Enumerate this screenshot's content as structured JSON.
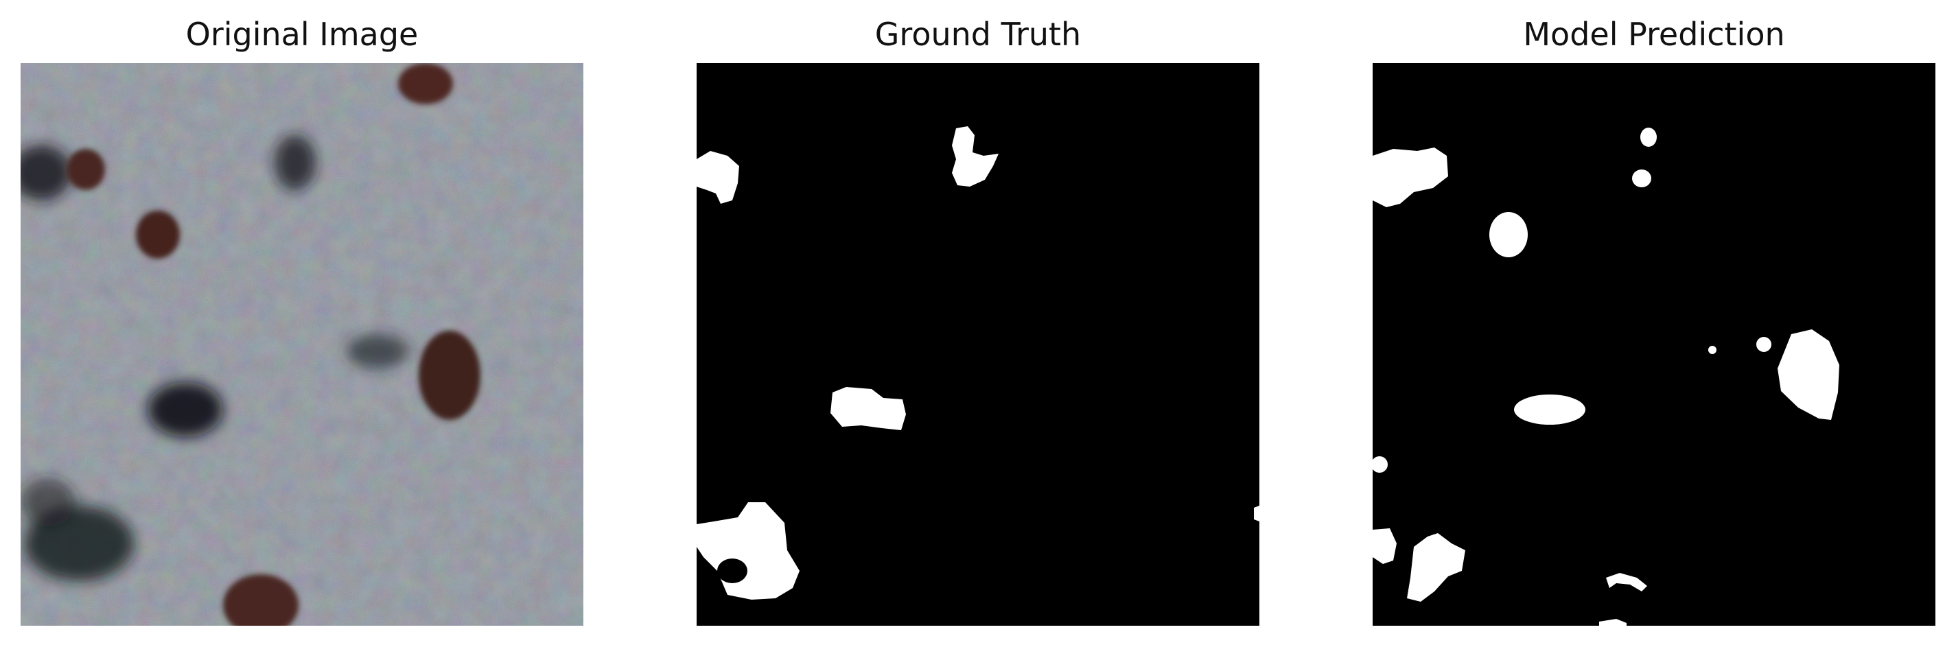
{
  "panels": [
    {
      "title": "Original Image",
      "kind": "photo"
    },
    {
      "title": "Ground Truth",
      "kind": "mask"
    },
    {
      "title": "Model Prediction",
      "kind": "mask"
    }
  ],
  "colors": {
    "mask_background": "#000000",
    "mask_foreground": "#ffffff",
    "tissue_base": "#8fa0ae",
    "dark_nucleus": "#1b1e24",
    "brown_nucleus": "#4a2620"
  }
}
